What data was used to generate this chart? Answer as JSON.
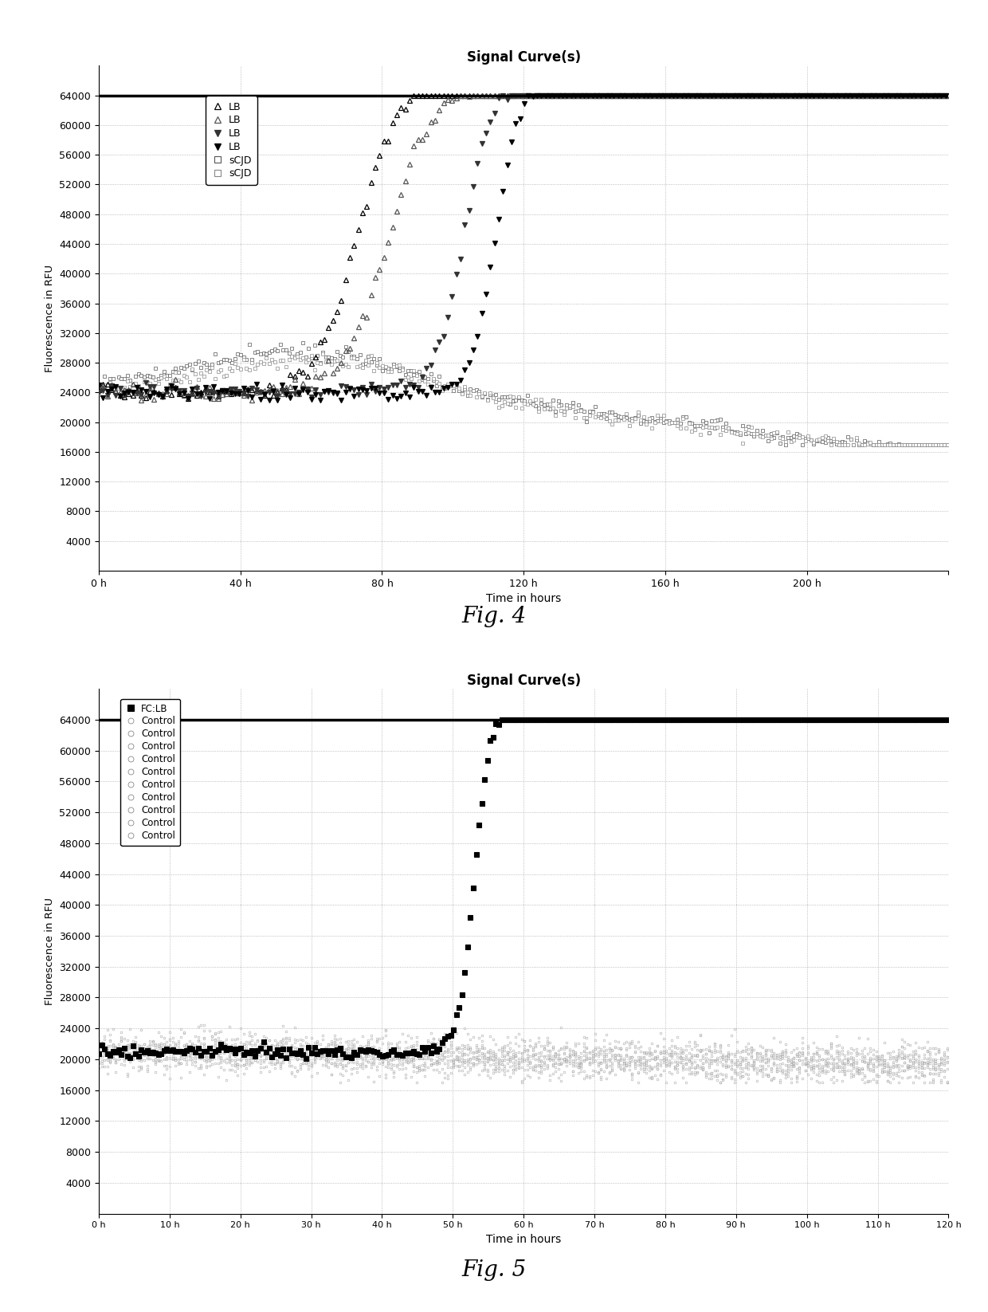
{
  "fig4": {
    "title": "Signal Curve(s)",
    "xlabel": "Time in hours",
    "ylabel": "Fluorescence in RFU",
    "fig_caption": "Fig. 4",
    "xlim": [
      0,
      240
    ],
    "ylim": [
      0,
      68000
    ],
    "yticks": [
      4000,
      8000,
      12000,
      16000,
      20000,
      24000,
      28000,
      32000,
      36000,
      40000,
      44000,
      48000,
      52000,
      56000,
      60000,
      64000
    ],
    "xticks": [
      0,
      40,
      80,
      120,
      160,
      200,
      240
    ],
    "xtick_labels": [
      "0 h",
      "40 h",
      "80 h",
      "120 h",
      "160 h",
      "200 h",
      ""
    ],
    "legend_labels": [
      "LB",
      "LB",
      "LB",
      "LB",
      "sCJD",
      "sCJD"
    ]
  },
  "fig5": {
    "title": "Signal Curve(s)",
    "xlabel": "Time in hours",
    "ylabel": "Fluorescence in RFU",
    "fig_caption": "Fig. 5",
    "xlim": [
      0,
      120
    ],
    "ylim": [
      0,
      68000
    ],
    "yticks": [
      4000,
      8000,
      12000,
      16000,
      20000,
      24000,
      28000,
      32000,
      36000,
      40000,
      44000,
      48000,
      52000,
      56000,
      60000,
      64000
    ],
    "xticks": [
      0,
      10,
      20,
      30,
      40,
      50,
      60,
      70,
      80,
      90,
      100,
      110,
      120
    ],
    "xtick_labels": [
      "0 h",
      "10 h",
      "20 h",
      "30 h",
      "40 h",
      "50 h",
      "60 h",
      "70 h",
      "80 h",
      "90 h",
      "100 h",
      "110 h",
      "120 h"
    ],
    "legend_labels": [
      "FC:LB",
      "Control",
      "Control",
      "Control",
      "Control",
      "Control",
      "Control",
      "Control",
      "Control",
      "Control",
      "Control"
    ]
  }
}
